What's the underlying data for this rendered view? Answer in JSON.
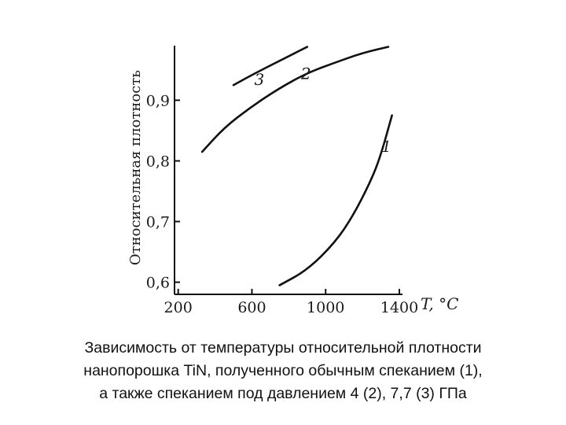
{
  "chart_data": {
    "type": "line",
    "xlabel": "T, °C",
    "ylabel": "Относительная плотность",
    "x_ticks": [
      "200",
      "600",
      "1000",
      "1400"
    ],
    "y_ticks": [
      "0,6",
      "0,7",
      "0,8",
      "0,9"
    ],
    "xlim": [
      180,
      1400
    ],
    "ylim": [
      0.58,
      0.99
    ],
    "series": [
      {
        "name": "1",
        "x": [
          750,
          900,
          1050,
          1150,
          1250,
          1300,
          1360
        ],
        "y": [
          0.595,
          0.62,
          0.665,
          0.71,
          0.77,
          0.81,
          0.875
        ]
      },
      {
        "name": "2",
        "x": [
          330,
          450,
          600,
          750,
          900,
          1050,
          1200,
          1340
        ],
        "y": [
          0.815,
          0.855,
          0.89,
          0.92,
          0.945,
          0.962,
          0.978,
          0.988
        ]
      },
      {
        "name": "3",
        "x": [
          500,
          620,
          750,
          900
        ],
        "y": [
          0.925,
          0.945,
          0.965,
          0.988
        ]
      }
    ]
  },
  "caption": {
    "line1": "Зависимость от температуры относительной плотности",
    "line2": "нанопорошка TiN, полученного обычным спеканием (1),",
    "line3": "а также спеканием под давлением  4 (2), 7,7 (3) ГПа"
  }
}
